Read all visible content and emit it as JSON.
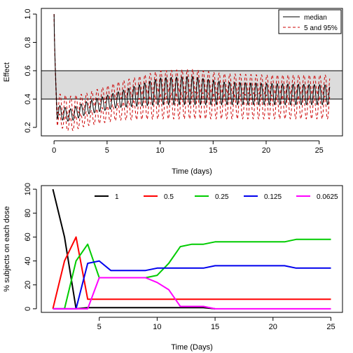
{
  "chart_data": [
    {
      "type": "line",
      "xlabel": "Time (days)",
      "ylabel": "Effect",
      "xlim": [
        -1.2,
        27.2
      ],
      "ylim": [
        0.14,
        1.04
      ],
      "x_ticks": [
        0,
        5,
        10,
        15,
        20,
        25
      ],
      "y_ticks": [
        0.2,
        0.4,
        0.6,
        0.8,
        1.0
      ],
      "x_tick_labels": [
        "0",
        "5",
        "10",
        "15",
        "20",
        "25"
      ],
      "y_tick_labels": [
        "0.2",
        "0.4",
        "0.6",
        "0.8",
        "1.0"
      ],
      "target_band": [
        0.4,
        0.6
      ],
      "band_color": "#dcdcdc",
      "legend": {
        "position": "top-right",
        "entries": [
          "median",
          "5 and 95%"
        ]
      },
      "series": [
        {
          "name": "median",
          "color": "#000000",
          "style": "solid"
        },
        {
          "name": "5 and 95%",
          "color": "#cc0000",
          "style": "dashed"
        }
      ],
      "oscillation": {
        "period_days": 0.5,
        "time_range": [
          0,
          26
        ],
        "initial_value": 1.0,
        "median": {
          "trough_keypoints": [
            [
              0.3,
              0.26
            ],
            [
              1.5,
              0.24
            ],
            [
              3,
              0.29
            ],
            [
              6,
              0.34
            ],
            [
              10,
              0.36
            ],
            [
              16,
              0.36
            ],
            [
              26,
              0.36
            ]
          ],
          "peak_keypoints": [
            [
              0.3,
              0.36
            ],
            [
              1.5,
              0.33
            ],
            [
              3,
              0.38
            ],
            [
              6,
              0.45
            ],
            [
              10,
              0.55
            ],
            [
              13,
              0.56
            ],
            [
              16,
              0.52
            ],
            [
              20,
              0.51
            ],
            [
              26,
              0.5
            ]
          ]
        },
        "upper": {
          "trough_keypoints": [
            [
              0.3,
              0.3
            ],
            [
              1.5,
              0.27
            ],
            [
              3,
              0.33
            ],
            [
              6,
              0.4
            ],
            [
              10,
              0.45
            ],
            [
              16,
              0.44
            ],
            [
              26,
              0.43
            ]
          ],
          "peak_keypoints": [
            [
              0.3,
              0.44
            ],
            [
              1.5,
              0.42
            ],
            [
              3,
              0.44
            ],
            [
              6,
              0.52
            ],
            [
              10,
              0.6
            ],
            [
              13,
              0.61
            ],
            [
              16,
              0.58
            ],
            [
              20,
              0.57
            ],
            [
              26,
              0.57
            ]
          ]
        },
        "lower": {
          "trough_keypoints": [
            [
              0.3,
              0.21
            ],
            [
              1.5,
              0.17
            ],
            [
              3,
              0.21
            ],
            [
              6,
              0.25
            ],
            [
              10,
              0.26
            ],
            [
              16,
              0.26
            ],
            [
              26,
              0.26
            ]
          ],
          "peak_keypoints": [
            [
              0.3,
              0.3
            ],
            [
              1.5,
              0.27
            ],
            [
              3,
              0.31
            ],
            [
              6,
              0.37
            ],
            [
              10,
              0.44
            ],
            [
              13,
              0.45
            ],
            [
              16,
              0.44
            ],
            [
              20,
              0.43
            ],
            [
              26,
              0.42
            ]
          ]
        }
      }
    },
    {
      "type": "line",
      "xlabel": "Time (Days)",
      "ylabel": "% subjects on each dose",
      "xlim": [
        0,
        26
      ],
      "ylim": [
        -3,
        103
      ],
      "x_ticks": [
        5,
        10,
        15,
        20,
        25
      ],
      "y_ticks": [
        0,
        20,
        40,
        60,
        80,
        100
      ],
      "x_tick_labels": [
        "5",
        "10",
        "15",
        "20",
        "25"
      ],
      "y_tick_labels": [
        "0",
        "20",
        "40",
        "60",
        "80",
        "100"
      ],
      "legend": {
        "position": "top",
        "entries": [
          "1",
          "0.5",
          "0.25",
          "0.125",
          "0.0625"
        ]
      },
      "series": [
        {
          "name": "1",
          "color": "#000000",
          "x": [
            1,
            2,
            3,
            4,
            5,
            6,
            7,
            8,
            9,
            10,
            11,
            12,
            13,
            14,
            15
          ],
          "values": [
            100,
            60,
            0,
            1,
            1,
            1,
            1,
            1,
            1,
            1,
            1,
            1,
            1,
            1,
            0
          ]
        },
        {
          "name": "0.5",
          "color": "#ff0000",
          "x": [
            1,
            2,
            3,
            4,
            5,
            10,
            15,
            20,
            25
          ],
          "values": [
            0,
            40,
            60,
            8,
            8,
            8,
            8,
            8,
            8
          ]
        },
        {
          "name": "0.25",
          "color": "#00cc00",
          "x": [
            1,
            2,
            3,
            4,
            5,
            6,
            9,
            10,
            11,
            12,
            13,
            14,
            15,
            16,
            21,
            22,
            23,
            25
          ],
          "values": [
            0,
            0,
            40,
            54,
            26,
            26,
            26,
            28,
            38,
            52,
            54,
            54,
            56,
            56,
            56,
            58,
            58,
            58
          ]
        },
        {
          "name": "0.125",
          "color": "#0000ee",
          "x": [
            1,
            2,
            3,
            4,
            5,
            6,
            9,
            10,
            11,
            14,
            15,
            21,
            22,
            25
          ],
          "values": [
            0,
            0,
            0,
            38,
            40,
            32,
            32,
            34,
            34,
            34,
            36,
            36,
            34,
            34
          ]
        },
        {
          "name": "0.0625",
          "color": "#ff00ff",
          "x": [
            1,
            2,
            3,
            4,
            5,
            6,
            9,
            10,
            11,
            12,
            13,
            14,
            15,
            25
          ],
          "values": [
            0,
            0,
            0,
            0,
            26,
            26,
            26,
            22,
            16,
            2,
            2,
            2,
            0,
            0
          ]
        }
      ]
    }
  ]
}
